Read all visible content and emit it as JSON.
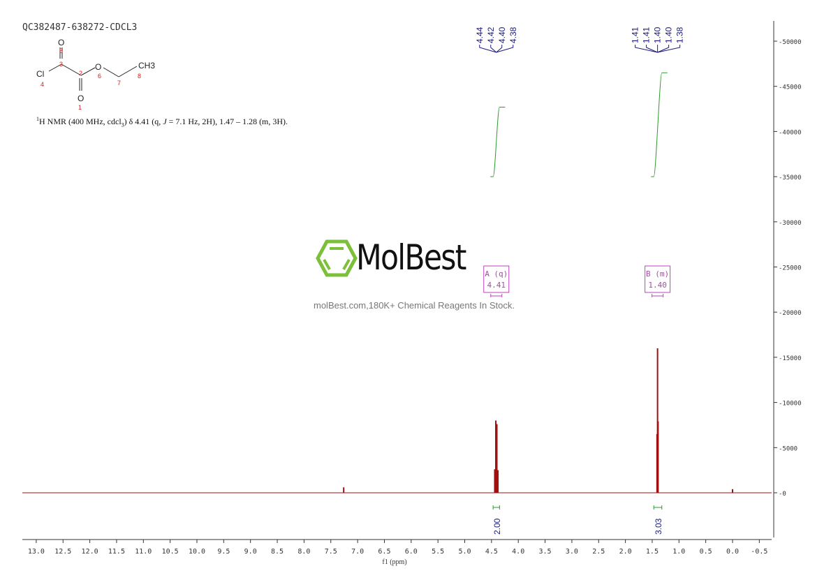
{
  "header": {
    "sample_id": "QC382487-638272-CDCL3",
    "nmr_description": "H NMR (400 MHz, cdcl3) δ 4.41 (q, J = 7.1 Hz, 2H), 1.47 – 1.28 (m, 3H).",
    "desc_sup": "1",
    "desc_main": "H NMR (400 MHz, cdcl",
    "desc_sub": "3",
    "desc_rest1": ") δ 4.41 (q, ",
    "desc_J": "J",
    "desc_rest2": " = 7.1 Hz, 2H), 1.47 – 1.28 (m, 3H)."
  },
  "structure": {
    "atoms": [
      "O",
      "Cl",
      "O",
      "O",
      "CH3"
    ],
    "numbers": [
      "1",
      "2",
      "3",
      "4",
      "5",
      "6",
      "7",
      "8"
    ]
  },
  "watermark": {
    "logo": "MolBest",
    "tagline": "molBest.com,180K+ Chemical Reagents In Stock."
  },
  "colors": {
    "spectrum": "#a01010",
    "integral": "#2e9a2e",
    "labels": "#1a1a7a",
    "multiplet": "#c040c0",
    "logo": "#7cc03a"
  },
  "chart_data": {
    "type": "line",
    "title": "",
    "xlabel": "f1 (ppm)",
    "ylabel": "",
    "xlim": [
      13.3,
      -0.7
    ],
    "ylim": [
      -5000,
      52000
    ],
    "x_ticks": [
      "13.0",
      "12.5",
      "12.0",
      "11.5",
      "11.0",
      "10.5",
      "10.0",
      "9.5",
      "9.0",
      "8.5",
      "8.0",
      "7.5",
      "7.0",
      "6.5",
      "6.0",
      "5.5",
      "5.0",
      "4.5",
      "4.0",
      "3.5",
      "3.0",
      "2.5",
      "2.0",
      "1.5",
      "1.0",
      "0.5",
      "0.0",
      "-0.5"
    ],
    "y_ticks": [
      "0",
      "5000",
      "10000",
      "15000",
      "20000",
      "25000",
      "30000",
      "35000",
      "40000",
      "45000",
      "50000"
    ],
    "peaks": [
      {
        "ppm": 4.44,
        "h": 2600
      },
      {
        "ppm": 4.42,
        "h": 8000
      },
      {
        "ppm": 4.4,
        "h": 7600
      },
      {
        "ppm": 4.38,
        "h": 2500
      },
      {
        "ppm": 1.41,
        "h": 6500
      },
      {
        "ppm": 1.4,
        "h": 16000
      },
      {
        "ppm": 1.39,
        "h": 7900
      },
      {
        "ppm": 7.26,
        "h": 600
      },
      {
        "ppm": 0.0,
        "h": 400
      }
    ],
    "peak_labels": [
      {
        "group": [
          "4.44",
          "4.42",
          "4.40",
          "4.38"
        ],
        "center": 4.41
      },
      {
        "group": [
          "1.41",
          "1.41",
          "1.40",
          "1.40",
          "1.38"
        ],
        "center": 1.4
      }
    ],
    "integrals": [
      {
        "from": 4.47,
        "to": 4.35,
        "value": "2.00",
        "y_start": 35000,
        "y_end": 42700
      },
      {
        "from": 1.47,
        "to": 1.32,
        "value": "3.03",
        "y_start": 35000,
        "y_end": 46500
      }
    ],
    "multiplets": [
      {
        "label": "A (q)",
        "shift": "4.41",
        "ppm": 4.41
      },
      {
        "label": "B (m)",
        "shift": "1.40",
        "ppm": 1.4
      }
    ]
  }
}
